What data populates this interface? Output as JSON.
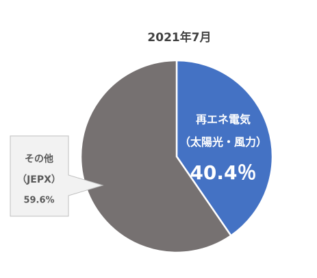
{
  "chart_data": {
    "type": "pie",
    "title": "2021年7月",
    "categories": [
      [
        "再エネ電気",
        "（太陽光・風力）"
      ],
      [
        "その他",
        "（JEPX）"
      ]
    ],
    "values": [
      40.4,
      59.6
    ],
    "value_labels": [
      "40.4％",
      "59.6%"
    ],
    "colors": [
      "#4472c4",
      "#767171"
    ]
  }
}
